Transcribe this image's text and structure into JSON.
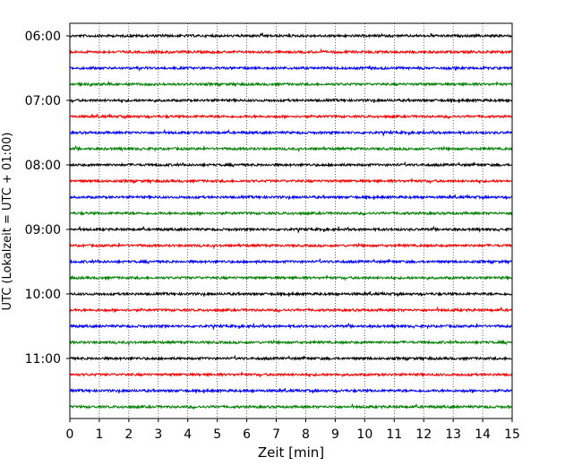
{
  "chart_data": {
    "type": "line",
    "title": "",
    "xlabel": "Zeit  [min]",
    "ylabel": "UTC (Lokalzeit = UTC + 01:00)",
    "xlim": [
      0,
      15
    ],
    "x_ticks": [
      "0",
      "1",
      "2",
      "3",
      "4",
      "5",
      "6",
      "7",
      "8",
      "9",
      "10",
      "11",
      "12",
      "13",
      "14",
      "15"
    ],
    "y_ticks": [
      "06:00",
      "07:00",
      "08:00",
      "09:00",
      "10:00",
      "11:00"
    ],
    "grid": "vertical dotted at each minute",
    "line_colors": [
      "#000000",
      "#ff0000",
      "#0000ff",
      "#008000"
    ],
    "trace_start_times_utc": [
      "06:00",
      "06:15",
      "06:30",
      "06:45",
      "07:00",
      "07:15",
      "07:30",
      "07:45",
      "08:00",
      "08:15",
      "08:30",
      "08:45",
      "09:00",
      "09:15",
      "09:30",
      "09:45",
      "10:00",
      "10:15",
      "10:30",
      "10:45",
      "11:00",
      "11:15",
      "11:30",
      "11:45"
    ]
  }
}
